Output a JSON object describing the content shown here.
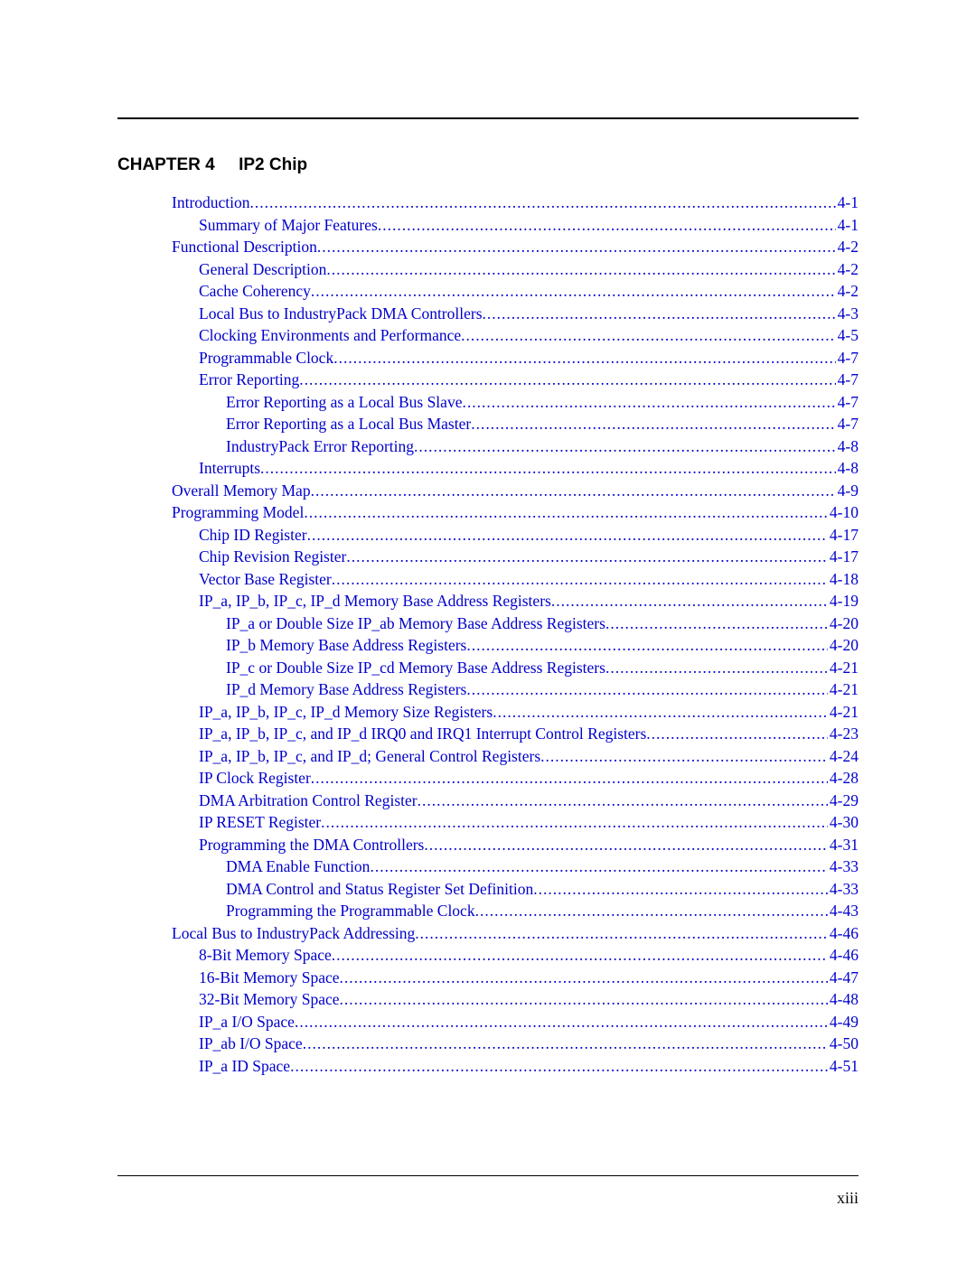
{
  "chapter": {
    "label": "CHAPTER 4",
    "title": "IP2 Chip"
  },
  "link_color": "#0000cc",
  "text_color": "#000000",
  "font_body": "Times New Roman",
  "font_heading": "Arial",
  "page_number": "xiii",
  "toc": [
    {
      "indent": 0,
      "title": "Introduction",
      "page": "4-1"
    },
    {
      "indent": 1,
      "title": "Summary of Major Features",
      "page": "4-1"
    },
    {
      "indent": 0,
      "title": "Functional Description",
      "page": "4-2"
    },
    {
      "indent": 1,
      "title": "General Description",
      "page": "4-2"
    },
    {
      "indent": 1,
      "title": "Cache Coherency",
      "page": "4-2"
    },
    {
      "indent": 1,
      "title": "Local Bus to IndustryPack DMA Controllers",
      "page": "4-3"
    },
    {
      "indent": 1,
      "title": "Clocking Environments and Performance",
      "page": "4-5"
    },
    {
      "indent": 1,
      "title": "Programmable Clock",
      "page": "4-7"
    },
    {
      "indent": 1,
      "title": "Error Reporting",
      "page": "4-7"
    },
    {
      "indent": 2,
      "title": "Error Reporting as a Local Bus Slave",
      "page": "4-7"
    },
    {
      "indent": 2,
      "title": "Error Reporting as a Local Bus Master",
      "page": "4-7"
    },
    {
      "indent": 2,
      "title": "IndustryPack Error Reporting",
      "page": "4-8"
    },
    {
      "indent": 1,
      "title": "Interrupts",
      "page": "4-8"
    },
    {
      "indent": 0,
      "title": "Overall Memory Map",
      "page": "4-9"
    },
    {
      "indent": 0,
      "title": "Programming Model",
      "page": "4-10"
    },
    {
      "indent": 1,
      "title": "Chip ID Register",
      "page": "4-17"
    },
    {
      "indent": 1,
      "title": "Chip Revision Register",
      "page": "4-17"
    },
    {
      "indent": 1,
      "title": "Vector Base Register",
      "page": "4-18"
    },
    {
      "indent": 1,
      "title": "IP_a, IP_b, IP_c, IP_d Memory Base Address Registers",
      "page": "4-19"
    },
    {
      "indent": 2,
      "title": "IP_a or Double Size IP_ab Memory Base Address Registers",
      "page": "4-20"
    },
    {
      "indent": 2,
      "title": "IP_b Memory Base Address Registers",
      "page": "4-20"
    },
    {
      "indent": 2,
      "title": "IP_c or Double Size IP_cd Memory Base Address Registers",
      "page": "4-21"
    },
    {
      "indent": 2,
      "title": "IP_d Memory Base Address Registers",
      "page": "4-21"
    },
    {
      "indent": 1,
      "title": "IP_a, IP_b, IP_c, IP_d Memory Size Registers",
      "page": "4-21"
    },
    {
      "indent": 1,
      "title": "IP_a, IP_b, IP_c, and IP_d IRQ0 and IRQ1 Interrupt Control Registers",
      "page": "4-23"
    },
    {
      "indent": 1,
      "title": "IP_a, IP_b, IP_c, and IP_d; General Control Registers",
      "page": "4-24"
    },
    {
      "indent": 1,
      "title": "IP Clock Register",
      "page": "4-28"
    },
    {
      "indent": 1,
      "title": "DMA Arbitration Control Register",
      "page": "4-29"
    },
    {
      "indent": 1,
      "title": "IP RESET Register",
      "page": "4-30"
    },
    {
      "indent": 1,
      "title": "Programming the DMA Controllers",
      "page": "4-31"
    },
    {
      "indent": 2,
      "title": "DMA Enable Function",
      "page": "4-33"
    },
    {
      "indent": 2,
      "title": "DMA Control and Status Register Set Definition",
      "page": "4-33"
    },
    {
      "indent": 2,
      "title": "Programming the Programmable Clock",
      "page": "4-43"
    },
    {
      "indent": 0,
      "title": "Local Bus to IndustryPack Addressing",
      "page": "4-46"
    },
    {
      "indent": 1,
      "title": "8-Bit Memory Space",
      "page": "4-46"
    },
    {
      "indent": 1,
      "title": "16-Bit Memory Space",
      "page": "4-47"
    },
    {
      "indent": 1,
      "title": "32-Bit Memory Space",
      "page": "4-48"
    },
    {
      "indent": 1,
      "title": "IP_a I/O Space",
      "page": "4-49"
    },
    {
      "indent": 1,
      "title": "IP_ab I/O Space",
      "page": "4-50"
    },
    {
      "indent": 1,
      "title": "IP_a ID Space",
      "page": "4-51"
    }
  ]
}
